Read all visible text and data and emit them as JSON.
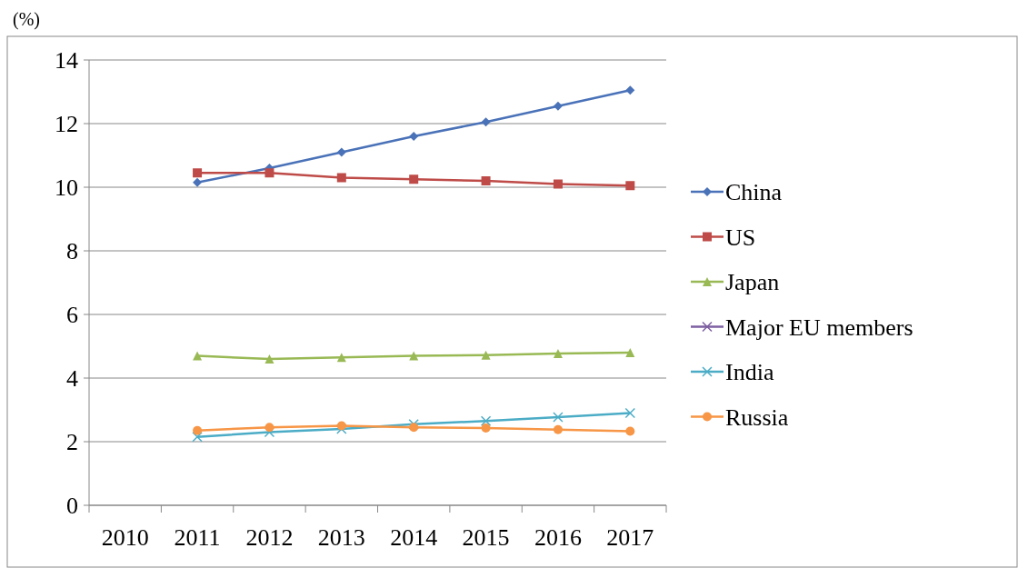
{
  "chart_data": {
    "type": "line",
    "ylabel": "(%)",
    "categories": [
      "2010",
      "2011",
      "2012",
      "2013",
      "2014",
      "2015",
      "2016",
      "2017"
    ],
    "ylim": [
      0,
      14
    ],
    "yticks": [
      0,
      2,
      4,
      6,
      8,
      10,
      12,
      14
    ],
    "grid": "y",
    "legend": "right",
    "series": [
      {
        "name": "China",
        "color": "#4a72b8",
        "marker": "diamond",
        "values": [
          null,
          10.15,
          10.6,
          11.1,
          11.6,
          12.05,
          12.55,
          13.05
        ]
      },
      {
        "name": "US",
        "color": "#be4b48",
        "marker": "square",
        "values": [
          null,
          10.45,
          10.45,
          10.3,
          10.25,
          10.2,
          10.1,
          10.05
        ]
      },
      {
        "name": "Japan",
        "color": "#98b954",
        "marker": "triangle",
        "values": [
          null,
          4.7,
          4.6,
          4.65,
          4.7,
          4.72,
          4.77,
          4.8
        ]
      },
      {
        "name": "Major EU members",
        "color": "#7d5fa0",
        "marker": "cross",
        "values": [
          null,
          null,
          null,
          null,
          null,
          null,
          null,
          null
        ]
      },
      {
        "name": "India",
        "color": "#4bacc6",
        "marker": "cross",
        "values": [
          null,
          2.15,
          2.3,
          2.4,
          2.55,
          2.65,
          2.77,
          2.9
        ]
      },
      {
        "name": "Russia",
        "color": "#f79646",
        "marker": "circle",
        "values": [
          null,
          2.35,
          2.45,
          2.5,
          2.45,
          2.43,
          2.38,
          2.33
        ]
      }
    ]
  }
}
